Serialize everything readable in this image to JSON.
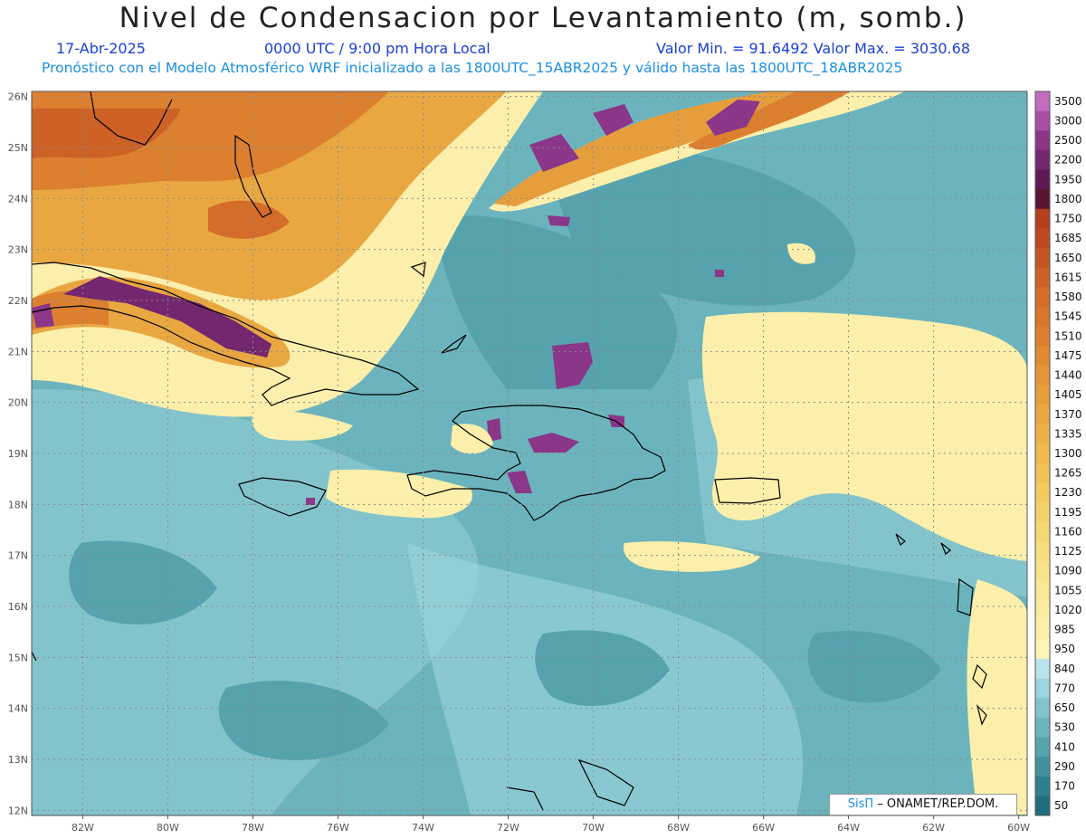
{
  "header": {
    "title": "Nivel de Condensacion por Levantamiento (m, somb.)",
    "date": "17-Abr-2025",
    "time": "0000 UTC / 9:00 pm Hora Local",
    "range": "Valor Min. = 91.6492   Valor Max. = 3030.68",
    "model_line": "Pronóstico con el Modelo Atmosférico WRF inicializado a las 1800UTC_15ABR2025 y válido hasta las  1800UTC_18ABR2025"
  },
  "map": {
    "lon_range": [
      -83.2,
      -59.8
    ],
    "lat_range": [
      11.9,
      26.1
    ],
    "lon_ticks": [
      "82W",
      "80W",
      "78W",
      "76W",
      "74W",
      "72W",
      "70W",
      "68W",
      "66W",
      "64W",
      "62W",
      "60W"
    ],
    "lat_ticks": [
      "12N",
      "13N",
      "14N",
      "15N",
      "16N",
      "17N",
      "18N",
      "19N",
      "20N",
      "21N",
      "22N",
      "23N",
      "24N",
      "25N",
      "26N"
    ]
  },
  "colorbar": {
    "labels": [
      "3500",
      "3000",
      "2500",
      "2200",
      "1950",
      "1800",
      "1750",
      "1685",
      "1650",
      "1615",
      "1580",
      "1545",
      "1510",
      "1475",
      "1440",
      "1405",
      "1370",
      "1335",
      "1300",
      "1265",
      "1230",
      "1195",
      "1160",
      "1125",
      "1090",
      "1055",
      "1020",
      "985",
      "950",
      "840",
      "770",
      "650",
      "530",
      "410",
      "290",
      "170",
      "50"
    ],
    "colors": [
      "#c26cc0",
      "#a94ea5",
      "#8b3688",
      "#73276f",
      "#5e1a55",
      "#5a1530",
      "#b3401c",
      "#bd4a1f",
      "#c55623",
      "#cd6126",
      "#d46c2a",
      "#d8762d",
      "#dc8030",
      "#e08a34",
      "#e39438",
      "#e69e3d",
      "#e9a742",
      "#ecb048",
      "#eeb94f",
      "#f0c257",
      "#f2ca60",
      "#f4d16a",
      "#f5d774",
      "#f7dd80",
      "#f8e28a",
      "#f9e795",
      "#faeca0",
      "#fbefab",
      "#fcf3b6",
      "#b9e5ea",
      "#9dd5dc",
      "#83c4cc",
      "#6cb4bd",
      "#56a3ae",
      "#42929e",
      "#2f808e",
      "#1f6e7e"
    ]
  },
  "credit": {
    "brand": "SisΠ",
    "text": "– ONAMET/REP.DOM."
  }
}
